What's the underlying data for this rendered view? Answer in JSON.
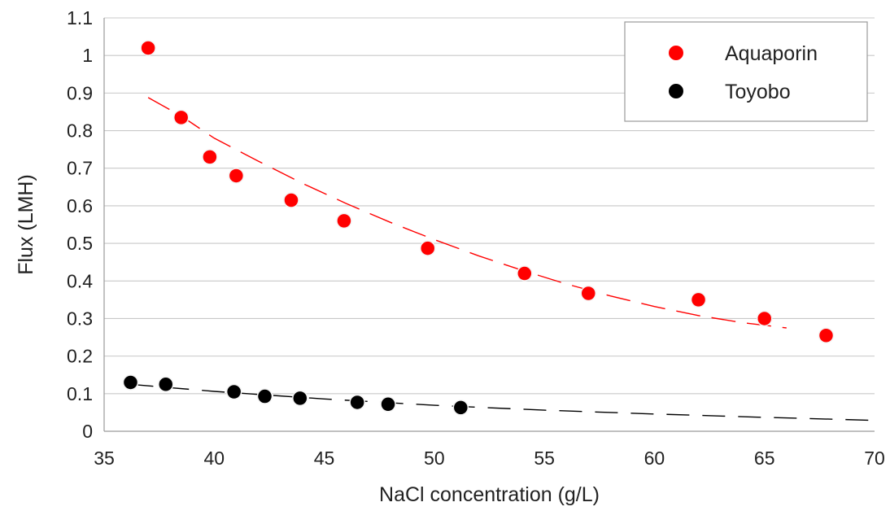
{
  "chart_data": {
    "type": "scatter",
    "title": "",
    "xlabel": "NaCl concentration (g/L)",
    "ylabel": "Flux (LMH)",
    "xlim": [
      35,
      70
    ],
    "ylim": [
      0,
      1.1
    ],
    "x_ticks": [
      "35",
      "40",
      "45",
      "50",
      "55",
      "60",
      "65",
      "70"
    ],
    "y_ticks": [
      "0",
      "0.1",
      "0.2",
      "0.3",
      "0.4",
      "0.5",
      "0.6",
      "0.7",
      "0.8",
      "0.9",
      "1",
      "1.1"
    ],
    "grid": "horizontal",
    "legend_position": "top-right",
    "series": [
      {
        "name": "Aquaporin",
        "color": "#ff0000",
        "points": [
          [
            37.0,
            1.02
          ],
          [
            38.5,
            0.835
          ],
          [
            39.8,
            0.73
          ],
          [
            41.0,
            0.68
          ],
          [
            43.5,
            0.615
          ],
          [
            45.9,
            0.56
          ],
          [
            49.7,
            0.487
          ],
          [
            54.1,
            0.42
          ],
          [
            57.0,
            0.367
          ],
          [
            62.0,
            0.35
          ],
          [
            65.0,
            0.3
          ],
          [
            67.8,
            0.255
          ]
        ],
        "trendline": [
          [
            37.0,
            0.888
          ],
          [
            38.5,
            0.839
          ],
          [
            40.0,
            0.78
          ],
          [
            42.0,
            0.719
          ],
          [
            44.0,
            0.66
          ],
          [
            46.0,
            0.606
          ],
          [
            48.0,
            0.556
          ],
          [
            50.0,
            0.51
          ],
          [
            52.0,
            0.467
          ],
          [
            54.0,
            0.428
          ],
          [
            56.0,
            0.392
          ],
          [
            58.0,
            0.36
          ],
          [
            60.0,
            0.332
          ],
          [
            62.0,
            0.308
          ],
          [
            64.0,
            0.289
          ],
          [
            66.0,
            0.275
          ]
        ]
      },
      {
        "name": "Toyobo",
        "color": "#000000",
        "points": [
          [
            36.2,
            0.13
          ],
          [
            37.8,
            0.125
          ],
          [
            40.9,
            0.105
          ],
          [
            42.3,
            0.093
          ],
          [
            43.9,
            0.088
          ],
          [
            46.5,
            0.077
          ],
          [
            47.9,
            0.072
          ],
          [
            51.2,
            0.063
          ]
        ],
        "trendline": [
          [
            36.2,
            0.125
          ],
          [
            40.0,
            0.106
          ],
          [
            45.0,
            0.086
          ],
          [
            50.0,
            0.069
          ],
          [
            55.0,
            0.056
          ],
          [
            60.0,
            0.046
          ],
          [
            65.0,
            0.037
          ],
          [
            70.0,
            0.029
          ]
        ]
      }
    ]
  }
}
